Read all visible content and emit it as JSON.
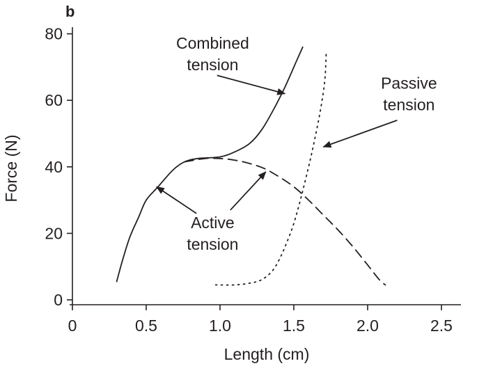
{
  "chart_data": {
    "type": "line",
    "panel_label": "b",
    "title": "",
    "xlabel": "Length (cm)",
    "ylabel": "Force (N)",
    "xlim": [
      0,
      2.6
    ],
    "ylim": [
      -2,
      82
    ],
    "x_ticks": [
      0,
      0.5,
      1.0,
      1.5,
      2.0,
      2.5
    ],
    "x_tick_labels": [
      "0",
      "0.5",
      "1.0",
      "1.5",
      "2.0",
      "2.5"
    ],
    "y_ticks": [
      0,
      20,
      40,
      60,
      80
    ],
    "y_tick_labels": [
      "0",
      "20",
      "40",
      "60",
      "80"
    ],
    "grid": false,
    "series": [
      {
        "name": "Combined tension",
        "style": "solid",
        "color": "#231f20",
        "points": [
          [
            0.3,
            5.5
          ],
          [
            0.34,
            12
          ],
          [
            0.39,
            19
          ],
          [
            0.45,
            25
          ],
          [
            0.5,
            30
          ],
          [
            0.58,
            34
          ],
          [
            0.68,
            39
          ],
          [
            0.76,
            41.5
          ],
          [
            0.85,
            42.5
          ],
          [
            1.0,
            43
          ],
          [
            1.1,
            44.5
          ],
          [
            1.2,
            47
          ],
          [
            1.28,
            51
          ],
          [
            1.36,
            57
          ],
          [
            1.44,
            64
          ],
          [
            1.52,
            72
          ],
          [
            1.56,
            76
          ]
        ]
      },
      {
        "name": "Active tension",
        "style": "dashed",
        "color": "#231f20",
        "points": [
          [
            0.76,
            41.5
          ],
          [
            0.9,
            42.5
          ],
          [
            1.0,
            42.5
          ],
          [
            1.1,
            42
          ],
          [
            1.2,
            41
          ],
          [
            1.3,
            39.5
          ],
          [
            1.4,
            37
          ],
          [
            1.5,
            34
          ],
          [
            1.6,
            30
          ],
          [
            1.7,
            25.5
          ],
          [
            1.8,
            21
          ],
          [
            1.9,
            16
          ],
          [
            2.0,
            10.5
          ],
          [
            2.08,
            6
          ],
          [
            2.12,
            4.5
          ]
        ]
      },
      {
        "name": "Passive tension",
        "style": "dotted",
        "color": "#231f20",
        "points": [
          [
            0.97,
            4.5
          ],
          [
            1.1,
            4.5
          ],
          [
            1.2,
            5
          ],
          [
            1.28,
            6
          ],
          [
            1.35,
            8.5
          ],
          [
            1.4,
            12
          ],
          [
            1.45,
            17
          ],
          [
            1.5,
            23
          ],
          [
            1.55,
            31
          ],
          [
            1.6,
            40
          ],
          [
            1.64,
            48
          ],
          [
            1.68,
            57
          ],
          [
            1.71,
            66
          ],
          [
            1.72,
            75
          ]
        ]
      }
    ],
    "annotations": [
      {
        "lines": [
          "Combined",
          "tension"
        ],
        "text_at": [
          0.95,
          75.5
        ],
        "arrows": [
          {
            "from": [
              0.98,
              67.5
            ],
            "to": [
              1.44,
              62
            ]
          }
        ]
      },
      {
        "lines": [
          "Passive",
          "tension"
        ],
        "text_at": [
          2.28,
          63.5
        ],
        "arrows": [
          {
            "from": [
              2.2,
              54
            ],
            "to": [
              1.7,
              46
            ]
          }
        ]
      },
      {
        "lines": [
          "Active",
          "tension"
        ],
        "text_at": [
          0.95,
          21.5
        ],
        "arrows": [
          {
            "from": [
              0.84,
              26
            ],
            "to": [
              0.57,
              34
            ]
          },
          {
            "from": [
              1.07,
              27
            ],
            "to": [
              1.31,
              38.5
            ]
          }
        ]
      }
    ]
  }
}
